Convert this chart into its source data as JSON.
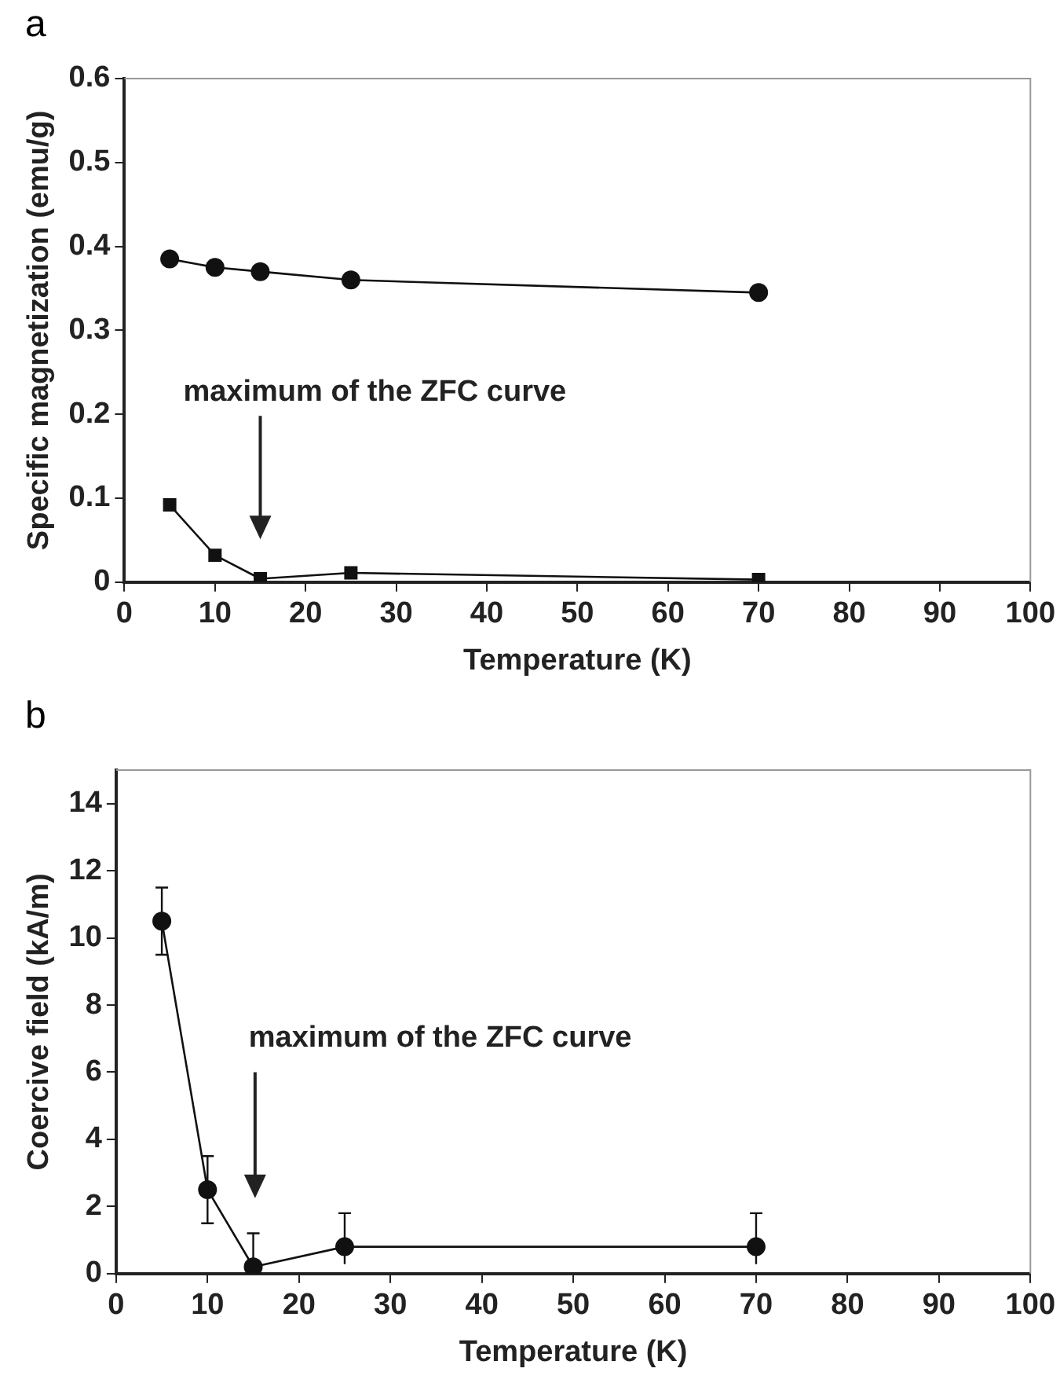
{
  "chart_data": [
    {
      "type": "line",
      "title": "a",
      "xlabel": "Temperature (K)",
      "ylabel": "Specific magnetization (emu/g)",
      "x": [
        5,
        10,
        15,
        25,
        70
      ],
      "xlim": [
        0,
        100
      ],
      "xticks": [
        0,
        10,
        20,
        30,
        40,
        50,
        60,
        70,
        80,
        90,
        100
      ],
      "ylim": [
        0,
        0.6
      ],
      "yticks": [
        0,
        0.1,
        0.2,
        0.3,
        0.4,
        0.5,
        0.6
      ],
      "grid": false,
      "legend": false,
      "line_style": "solid",
      "series": [
        {
          "color": "#111111",
          "marker": "circle",
          "values": [
            0.385,
            0.375,
            0.37,
            0.36,
            0.345
          ]
        },
        {
          "color": "#111111",
          "marker": "square",
          "values": [
            0.092,
            0.032,
            0.004,
            0.011,
            0.003
          ]
        }
      ],
      "annotations": [
        "maximum of the ZFC curve"
      ]
    },
    {
      "type": "line",
      "title": "b",
      "xlabel": "Temperature (K)",
      "ylabel": "Coercive field (kA/m)",
      "x": [
        5,
        10,
        15,
        25,
        70
      ],
      "xlim": [
        0,
        100
      ],
      "xticks": [
        0,
        10,
        20,
        30,
        40,
        50,
        60,
        70,
        80,
        90,
        100
      ],
      "ylim": [
        0,
        15
      ],
      "yticks": [
        0,
        2,
        4,
        6,
        8,
        10,
        12,
        14
      ],
      "grid": false,
      "legend": false,
      "line_style": "solid",
      "series": [
        {
          "color": "#111111",
          "marker": "circle",
          "values": [
            10.5,
            2.5,
            0.2,
            0.8,
            0.8
          ],
          "errors": [
            1,
            1,
            1,
            1,
            1
          ]
        }
      ],
      "annotations": [
        "maximum of the ZFC curve"
      ]
    }
  ]
}
